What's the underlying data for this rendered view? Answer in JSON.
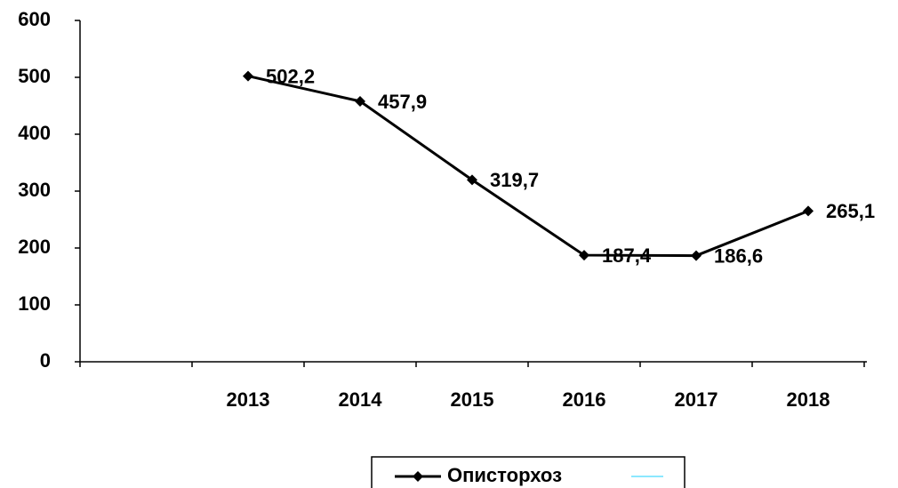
{
  "chart_data": {
    "type": "line",
    "categories": [
      null,
      "2013",
      "2014",
      "2015",
      "2016",
      "2017",
      "2018"
    ],
    "series": [
      {
        "name": "Описторхоз",
        "color": "#000000",
        "values": [
          null,
          502.2,
          457.9,
          319.7,
          187.4,
          186.6,
          265.1
        ],
        "value_labels": [
          null,
          "502,2",
          "457,9",
          "319,7",
          "187,4",
          "186,6",
          "265,1"
        ]
      }
    ],
    "ylim": [
      0,
      600
    ],
    "yticks": [
      0,
      100,
      200,
      300,
      400,
      500,
      600
    ],
    "legend": "bottom"
  }
}
